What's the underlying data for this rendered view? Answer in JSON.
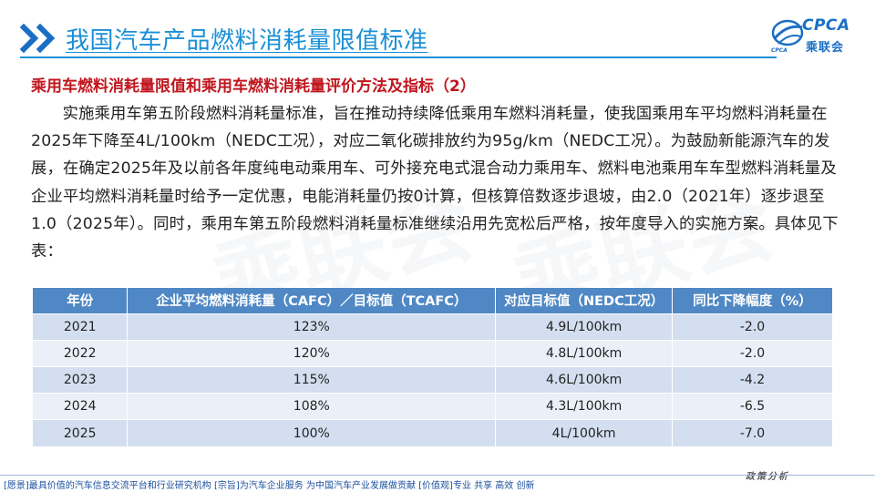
{
  "header": {
    "title": "我国汽车产品燃料消耗量限值标准",
    "logo_en": "CPCA",
    "logo_cn": "乘联会",
    "logo_sub": "CPCA"
  },
  "content": {
    "subtitle": "乘用车燃料消耗量限值和乘用车燃料消耗量评价方法及指标（2）",
    "paragraph": "实施乘用车第五阶段燃料消耗量标准，旨在推动持续降低乘用车燃料消耗量，使我国乘用车平均燃料消耗量在2025年下降至4L/100km（NEDC工况），对应二氧化碳排放约为95g/km（NEDC工况）。为鼓励新能源汽车的发展，在确定2025年及以前各年度纯电动乘用车、可外接充电式混合动力乘用车、燃料电池乘用车车型燃料消耗量及企业平均燃料消耗量时给予一定优惠，电能消耗量仍按0计算，但核算倍数逐步退坡，由2.0（2021年）逐步退至1.0（2025年）。同时，乘用车第五阶段燃料消耗量标准继续沿用先宽松后严格，按年度导入的实施方案。具体见下表："
  },
  "table": {
    "headers": [
      "年份",
      "企业平均燃料消耗量（CAFC）／目标值（TCAFC）",
      "对应目标值（NEDC工况）",
      "同比下降幅度（%）"
    ],
    "rows": [
      [
        "2021",
        "123%",
        "4.9L/100km",
        "-2.0"
      ],
      [
        "2022",
        "120%",
        "4.8L/100km",
        "-2.0"
      ],
      [
        "2023",
        "115%",
        "4.6L/100km",
        "-4.2"
      ],
      [
        "2024",
        "108%",
        "4.3L/100km",
        "-6.5"
      ],
      [
        "2025",
        "100%",
        "4L/100km",
        "-7.0"
      ]
    ]
  },
  "footer": {
    "text": "[愿景]最具价值的汽车信息交流平台和行业研究机构 [宗旨]为汽车企业服务 为中国汽车产业发展做贡献 [价值观]专业 共享 高效 创新",
    "signature": "政策分析"
  },
  "colors": {
    "title_blue": "#1a8fd6",
    "subtitle_red": "#c0161e",
    "table_header": "#4f88c4",
    "row_odd": "#d3dff0",
    "row_even": "#eaf0f8"
  }
}
